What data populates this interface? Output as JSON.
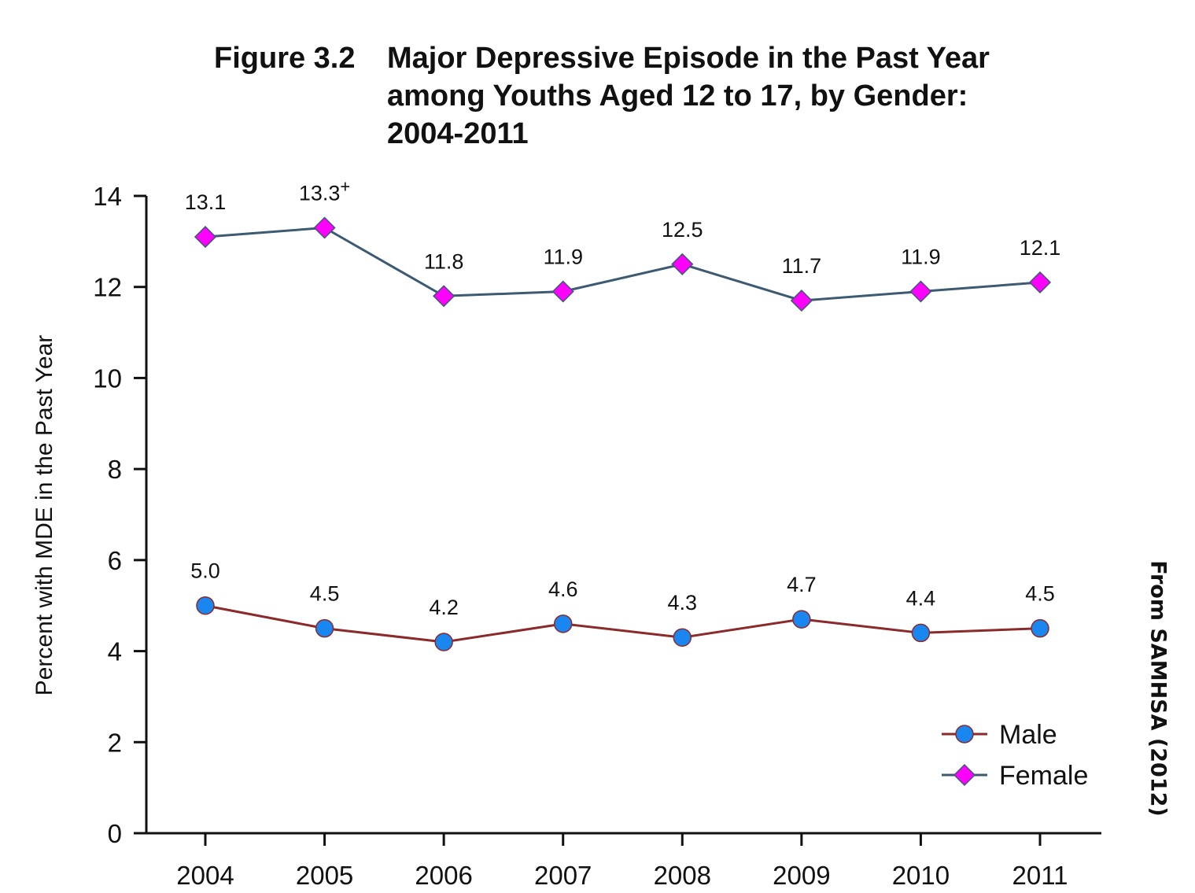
{
  "chart_data": {
    "type": "line",
    "figure_number": "Figure 3.2",
    "title_lines": [
      "Major Depressive Episode in the Past Year",
      "among Youths Aged 12 to 17, by Gender:",
      "2004-2011"
    ],
    "xlabel": "",
    "ylabel": "Percent with MDE in the Past Year",
    "ylim": [
      0,
      14
    ],
    "yticks": [
      0,
      2,
      4,
      6,
      8,
      10,
      12,
      14
    ],
    "categories": [
      "2004",
      "2005",
      "2006",
      "2007",
      "2008",
      "2009",
      "2010",
      "2011"
    ],
    "series": [
      {
        "name": "Male",
        "values": [
          5.0,
          4.5,
          4.2,
          4.6,
          4.3,
          4.7,
          4.4,
          4.5
        ],
        "labels": [
          "5.0",
          "4.5",
          "4.2",
          "4.6",
          "4.3",
          "4.7",
          "4.4",
          "4.5"
        ],
        "marker": "circle",
        "marker_color": "#1a86f0",
        "line_color": "#8b2a2a"
      },
      {
        "name": "Female",
        "values": [
          13.1,
          13.3,
          11.8,
          11.9,
          12.5,
          11.7,
          11.9,
          12.1
        ],
        "labels": [
          "13.1",
          "13.3+",
          "11.8",
          "11.9",
          "12.5",
          "11.7",
          "11.9",
          "12.1"
        ],
        "marker": "diamond",
        "marker_color": "#ff00ff",
        "line_color": "#3d5a73"
      }
    ],
    "legend_position": "bottom-right",
    "grid": false
  },
  "source": "From SAMHSA (2012)"
}
